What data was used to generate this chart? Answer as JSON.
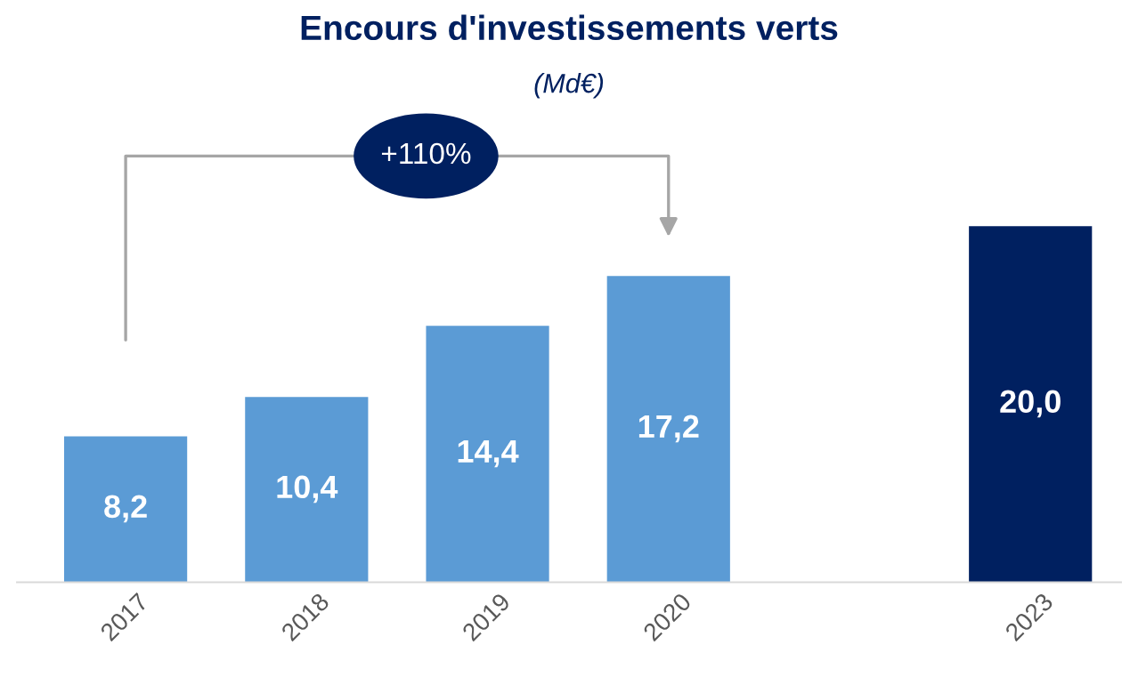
{
  "chart_data": {
    "type": "bar",
    "title": "Encours d'investissements verts",
    "subtitle": "(Md€)",
    "categories": [
      "2017",
      "2018",
      "2019",
      "2020",
      null,
      "2023"
    ],
    "values": [
      8.2,
      10.4,
      14.4,
      17.2,
      null,
      20.0
    ],
    "colors": [
      "#5b9bd5",
      "#5b9bd5",
      "#5b9bd5",
      "#5b9bd5",
      "#5b9bd5",
      "#002060"
    ],
    "value_labels": [
      "8,2",
      "10,4",
      "14,4",
      "17,2",
      null,
      "20,0"
    ],
    "annotations": [
      "+110%"
    ],
    "tick_labels": "x",
    "grid": false,
    "legend": false
  }
}
